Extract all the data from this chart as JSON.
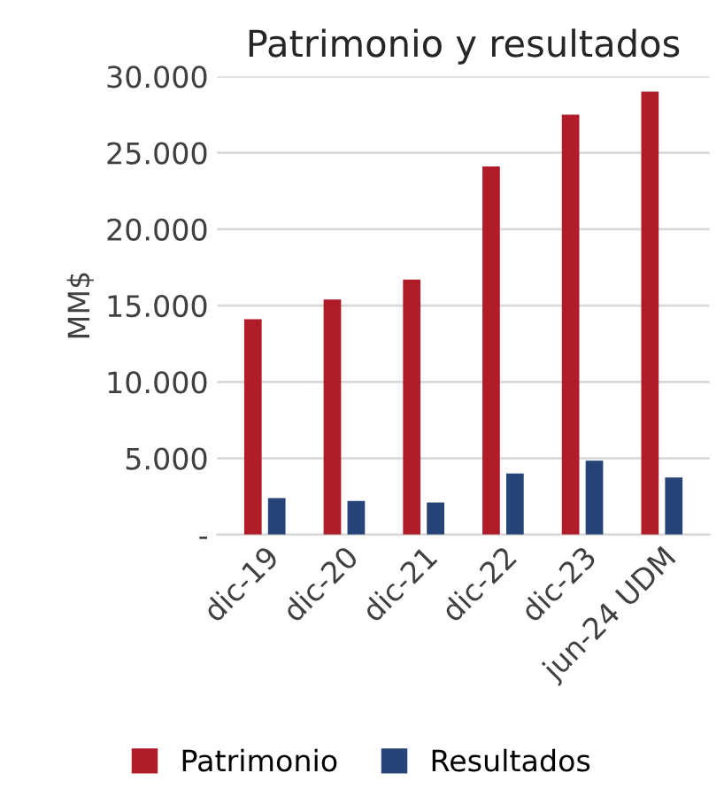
{
  "chart_data": {
    "type": "bar",
    "title": "Patrimonio y resultados",
    "ylabel": "MM$",
    "categories": [
      "dic-19",
      "dic-20",
      "dic-21",
      "dic-22",
      "dic-23",
      "jun-24 UDM"
    ],
    "series": [
      {
        "name": "Patrimonio",
        "color": "#b01c28",
        "values": [
          14100,
          15400,
          16700,
          24100,
          27500,
          29000
        ]
      },
      {
        "name": "Resultados",
        "color": "#264478",
        "values": [
          2400,
          2200,
          2100,
          4000,
          4850,
          3750
        ]
      }
    ],
    "ylim": [
      0,
      30000
    ],
    "yticks": [
      {
        "value": 0,
        "label": "-"
      },
      {
        "value": 5000,
        "label": "5.000"
      },
      {
        "value": 10000,
        "label": "10.000"
      },
      {
        "value": 15000,
        "label": "15.000"
      },
      {
        "value": 20000,
        "label": "20.000"
      },
      {
        "value": 25000,
        "label": "25.000"
      },
      {
        "value": 30000,
        "label": "30.000"
      }
    ],
    "grid": "y",
    "legend": "bottom"
  }
}
